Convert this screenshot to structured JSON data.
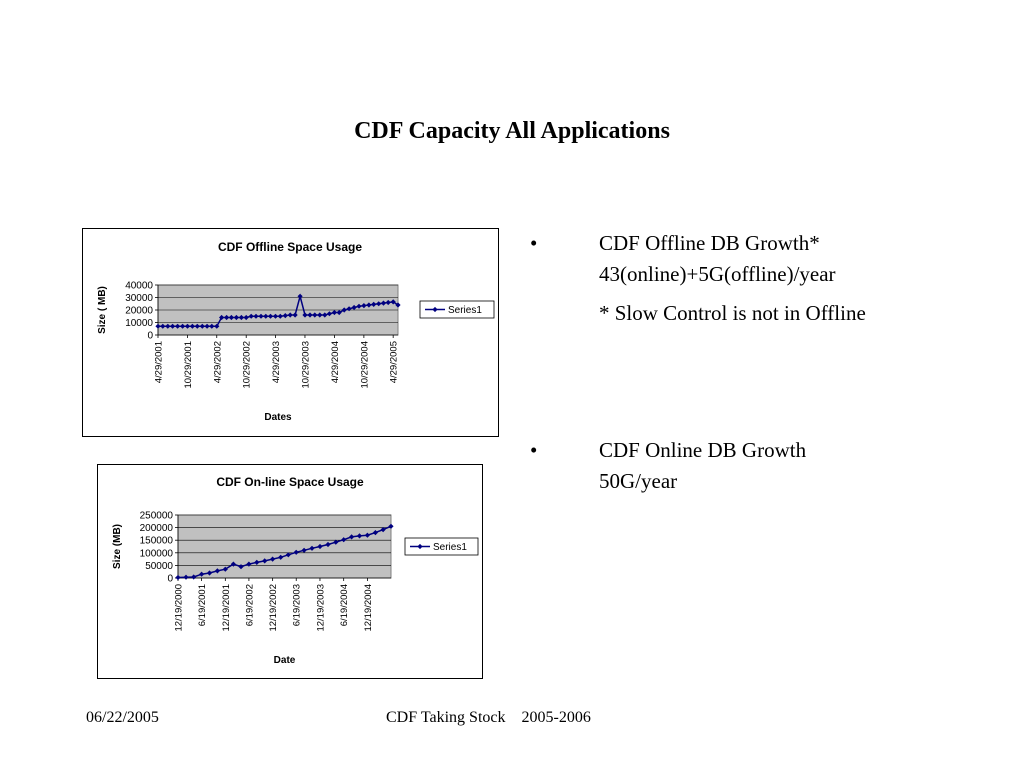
{
  "slide": {
    "title": "CDF Capacity All Applications",
    "footer_date": "06/22/2005",
    "footer_center": "CDF Taking Stock    2005-2006"
  },
  "bullets": [
    {
      "marker": "•",
      "lines": [
        "CDF Offline DB Growth*",
        "43(online)+5G(offline)/year",
        "* Slow Control is not in Offline"
      ]
    },
    {
      "marker": "•",
      "lines": [
        "CDF Online DB Growth",
        "50G/year"
      ]
    }
  ],
  "colors": {
    "plot_area": "#c0c0c0",
    "series": "#000080"
  },
  "chart_data": [
    {
      "type": "line",
      "title": "CDF Offline Space Usage",
      "xlabel": "Dates",
      "ylabel": "Size ( MB)",
      "ylim": [
        0,
        40000
      ],
      "yticks": [
        0,
        10000,
        20000,
        30000,
        40000
      ],
      "xticks": [
        "4/29/2001",
        "10/29/2001",
        "4/29/2002",
        "10/29/2002",
        "4/29/2003",
        "10/29/2003",
        "4/29/2004",
        "10/29/2004",
        "4/29/2005"
      ],
      "legend": "right",
      "grid": "horizontal",
      "series": [
        {
          "name": "Series1",
          "x": [
            "4/29/2001",
            "5/29/2001",
            "6/29/2001",
            "7/29/2001",
            "8/29/2001",
            "9/29/2001",
            "10/29/2001",
            "11/29/2001",
            "12/29/2001",
            "1/29/2002",
            "2/28/2002",
            "3/29/2002",
            "4/29/2002",
            "5/29/2002",
            "6/29/2002",
            "7/29/2002",
            "8/29/2002",
            "9/29/2002",
            "10/29/2002",
            "11/29/2002",
            "12/29/2002",
            "1/29/2003",
            "2/28/2003",
            "3/29/2003",
            "4/29/2003",
            "5/29/2003",
            "6/29/2003",
            "7/29/2003",
            "8/29/2003",
            "9/29/2003",
            "10/29/2003",
            "11/29/2003",
            "12/29/2003",
            "1/29/2004",
            "2/29/2004",
            "3/29/2004",
            "4/29/2004",
            "5/29/2004",
            "6/29/2004",
            "7/29/2004",
            "8/29/2004",
            "9/29/2004",
            "10/29/2004",
            "11/29/2004",
            "12/29/2004",
            "1/29/2005",
            "2/28/2005",
            "3/29/2005",
            "4/29/2005",
            "5/29/2005"
          ],
          "values": [
            7000,
            7000,
            7000,
            7000,
            7000,
            7000,
            7000,
            7000,
            7000,
            7000,
            7000,
            7000,
            7000,
            14000,
            14000,
            14000,
            14000,
            14000,
            14000,
            15000,
            15000,
            15000,
            15000,
            15000,
            15000,
            15000,
            15500,
            16000,
            16000,
            31000,
            16000,
            16000,
            16000,
            16000,
            16000,
            17000,
            18000,
            18000,
            20000,
            21000,
            22000,
            23000,
            23500,
            24000,
            24500,
            25000,
            25500,
            26000,
            26500,
            24000
          ]
        }
      ]
    },
    {
      "type": "line",
      "title": "CDF On-line Space Usage",
      "xlabel": "Date",
      "ylabel": "Size (MB)",
      "ylim": [
        0,
        250000
      ],
      "yticks": [
        0,
        50000,
        100000,
        150000,
        200000,
        250000
      ],
      "xticks": [
        "12/19/2000",
        "6/19/2001",
        "12/19/2001",
        "6/19/2002",
        "12/19/2002",
        "6/19/2003",
        "12/19/2003",
        "6/19/2004",
        "12/19/2004"
      ],
      "legend": "right",
      "grid": "horizontal",
      "series": [
        {
          "name": "Series1",
          "x": [
            "12/19/2000",
            "2/19/2001",
            "4/19/2001",
            "6/19/2001",
            "8/19/2001",
            "10/19/2001",
            "12/19/2001",
            "2/19/2002",
            "4/19/2002",
            "6/19/2002",
            "8/19/2002",
            "10/19/2002",
            "12/19/2002",
            "2/19/2003",
            "4/19/2003",
            "6/19/2003",
            "8/19/2003",
            "10/19/2003",
            "12/19/2003",
            "2/19/2004",
            "4/19/2004",
            "6/19/2004",
            "8/19/2004",
            "10/19/2004",
            "12/19/2004",
            "2/19/2005",
            "4/19/2005",
            "6/19/2005"
          ],
          "values": [
            2000,
            3000,
            4000,
            15000,
            20000,
            28000,
            35000,
            55000,
            45000,
            55000,
            62000,
            68000,
            75000,
            82000,
            92000,
            102000,
            110000,
            118000,
            125000,
            133000,
            142000,
            152000,
            163000,
            167000,
            170000,
            180000,
            192000,
            205000
          ]
        }
      ]
    }
  ]
}
